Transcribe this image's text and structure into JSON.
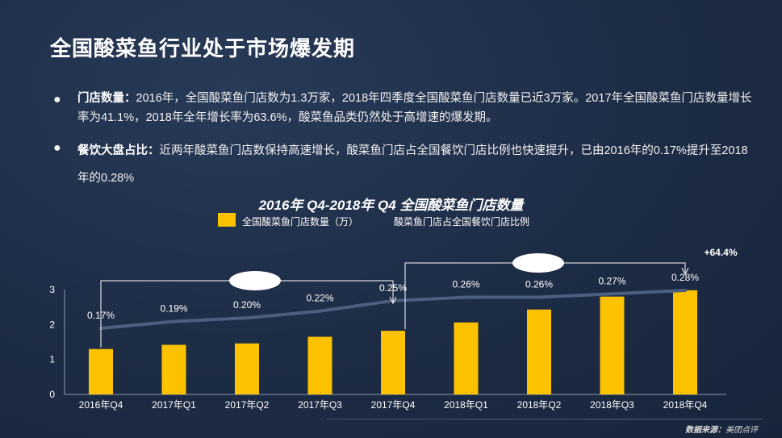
{
  "title": "全国酸菜鱼行业处于市场爆发期",
  "bullets": [
    {
      "lead": "门店数量：",
      "text": "2016年，全国酸菜鱼门店数为1.3万家，2018年四季度全国酸菜鱼门店数量已近3万家。2017年全国酸菜鱼门店数量增长率为41.1%，2018年全年增长率为63.6%，酸菜鱼品类仍然处于高增速的爆发期。"
    },
    {
      "lead": "餐饮大盘占比：",
      "text": "近两年酸菜鱼门店数保持高速增长，酸菜鱼门店占全国餐饮门店比例也快速提升，已由2016年的0.17%提升至2018年的0.28%"
    }
  ],
  "source": {
    "lead": "数据来源：",
    "name": "美团点评"
  },
  "chart_data": {
    "type": "bar",
    "title": "2016年  Q4-2018年  Q4 全国酸菜鱼门店数量",
    "categories": [
      "2016年Q4",
      "2017年Q1",
      "2017年Q2",
      "2017年Q3",
      "2017年Q4",
      "2018年Q1",
      "2018年Q2",
      "2018年Q3",
      "2018年Q4"
    ],
    "series": [
      {
        "name": "全国酸菜鱼门店数量（万）",
        "type": "bar",
        "color": "#fcc200",
        "values": [
          1.3,
          1.42,
          1.46,
          1.65,
          1.82,
          2.06,
          2.43,
          2.8,
          2.98
        ]
      },
      {
        "name": "酸菜鱼门店占全国餐饮门店比例",
        "type": "line",
        "color": "#4d5f7c",
        "values": [
          0.17,
          0.19,
          0.2,
          0.22,
          0.25,
          0.26,
          0.26,
          0.27,
          0.28
        ],
        "labels": [
          "0.17%",
          "0.19%",
          "0.20%",
          "0.22%",
          "0.25%",
          "0.26%",
          "0.26%",
          "0.27%",
          "0.28%"
        ]
      }
    ],
    "ylim": [
      0,
      3
    ],
    "yticks": [
      0,
      1,
      2,
      3
    ],
    "annotations": [
      {
        "text": "+64.4%"
      }
    ],
    "legend": "top-left",
    "grid": false
  }
}
